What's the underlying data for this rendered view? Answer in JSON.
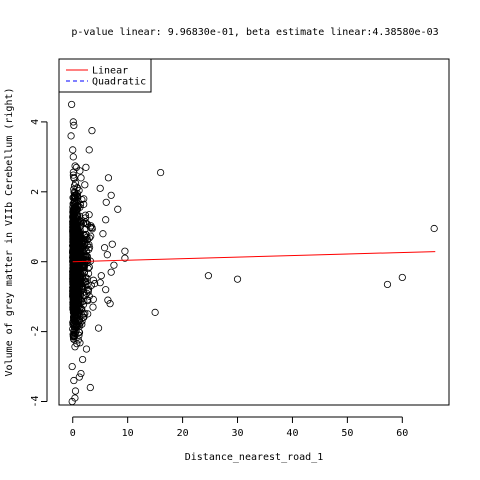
{
  "chart_data": {
    "type": "scatter",
    "title": "p-value linear: 9.96830e-01, beta estimate linear:4.38580e-03",
    "xlabel": "Distance_nearest_road_1",
    "ylabel": "Volume of grey matter in VIIb Cerebellum (right)",
    "xlim": [
      -2.5,
      68.5
    ],
    "ylim": [
      -4.1,
      5.8
    ],
    "xticks": [
      0,
      10,
      20,
      30,
      40,
      50,
      60
    ],
    "yticks": [
      -4,
      -2,
      0,
      2,
      4
    ],
    "grid": false,
    "legend": {
      "position": "top-left",
      "entries": [
        {
          "label": "Linear",
          "color": "#ff0000",
          "style": "solid"
        },
        {
          "label": "Quadratic",
          "color": "#0000ff",
          "style": "dashed"
        }
      ]
    },
    "series": [
      {
        "name": "Linear",
        "kind": "line",
        "color": "#ff0000",
        "x": [
          0,
          66
        ],
        "y": [
          0.0,
          0.29
        ]
      }
    ],
    "points": {
      "color": "#000000",
      "symbol": "open-circle",
      "x": [
        15,
        16,
        24.7,
        30,
        57.3,
        60,
        65.8,
        9.5,
        9.5,
        8.2,
        7,
        7,
        6.5,
        6.4,
        6.3,
        6,
        6,
        5.5,
        5,
        7.5,
        7.2,
        6.8,
        6.1,
        5.8,
        5.2,
        5,
        4.7,
        3.5,
        3.2,
        3,
        2.5,
        2.4,
        2.2,
        2,
        2,
        1.8,
        1.5,
        1.3,
        1.2,
        0.3,
        -0.2,
        -0.1,
        0.1,
        0.2,
        -0.3,
        0.4,
        0.5,
        0,
        0.2,
        0.1,
        -0.1
      ],
      "y": [
        -1.45,
        2.55,
        -0.4,
        -0.5,
        -0.65,
        -0.45,
        0.95,
        0.3,
        0.1,
        1.5,
        1.9,
        -0.3,
        2.4,
        -1.1,
        0.2,
        -0.8,
        1.2,
        0.8,
        -0.6,
        -0.1,
        0.5,
        -1.2,
        1.7,
        0.4,
        -0.4,
        2.1,
        -1.9,
        3.75,
        -3.6,
        3.2,
        -2.5,
        2.7,
        2.2,
        -1.5,
        1.1,
        -2.8,
        -3.2,
        2.6,
        -3.3,
        5.0,
        4.5,
        -4.0,
        4.0,
        3.9,
        3.6,
        -3.9,
        -3.7,
        3.2,
        -3.4,
        3.0,
        -3.0
      ]
    }
  }
}
